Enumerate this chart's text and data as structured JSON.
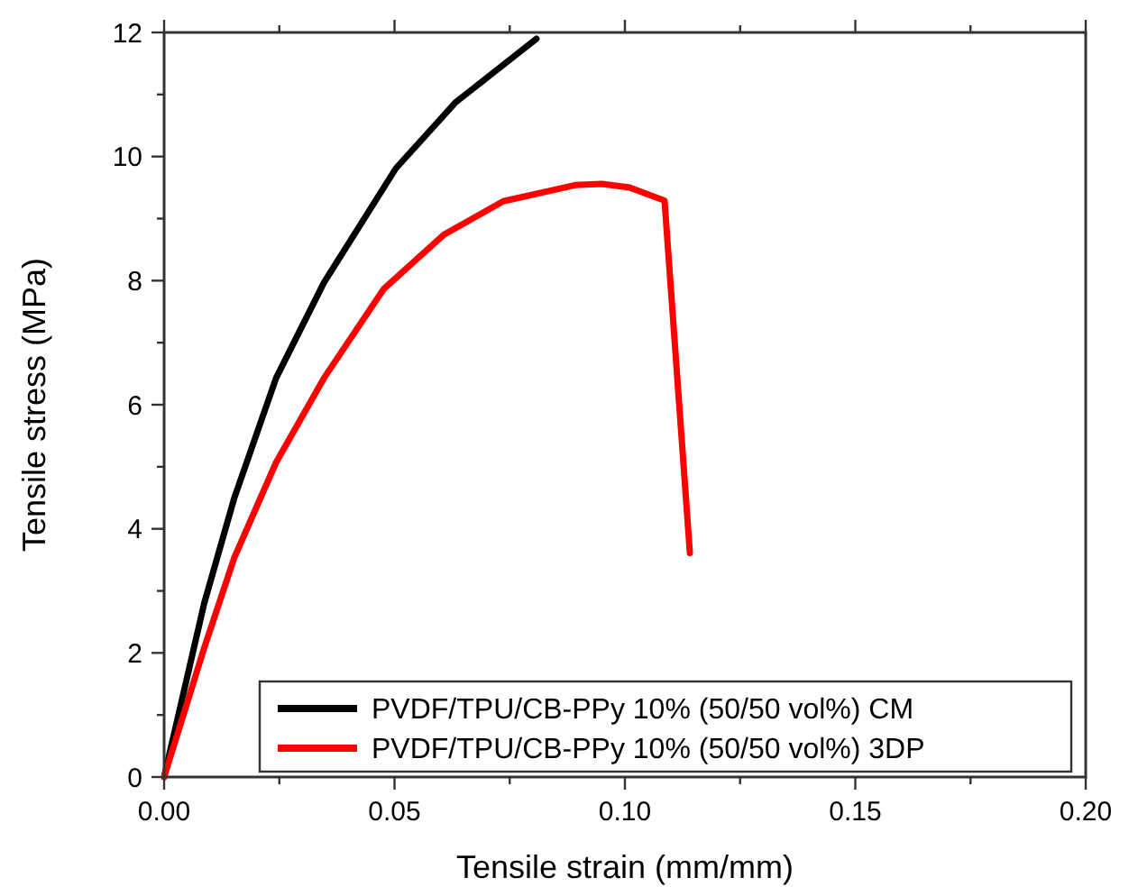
{
  "chart_data": {
    "type": "line",
    "xlabel": "Tensile strain (mm/mm)",
    "ylabel": "Tensile stress (MPa)",
    "xlim": [
      0,
      0.2
    ],
    "ylim": [
      0,
      12
    ],
    "xticks": [
      {
        "value": 0,
        "label": "0.00"
      },
      {
        "value": 0.025,
        "label": null
      },
      {
        "value": 0.05,
        "label": "0.05"
      },
      {
        "value": 0.075,
        "label": null
      },
      {
        "value": 0.1,
        "label": "0.10"
      },
      {
        "value": 0.125,
        "label": null
      },
      {
        "value": 0.15,
        "label": "0.15"
      },
      {
        "value": 0.175,
        "label": null
      },
      {
        "value": 0.2,
        "label": "0.20"
      }
    ],
    "yticks": [
      0,
      {
        "value": 1,
        "label": null
      },
      2,
      {
        "value": 3,
        "label": null
      },
      4,
      {
        "value": 5,
        "label": null
      },
      6,
      {
        "value": 7,
        "label": null
      },
      8,
      {
        "value": 9,
        "label": null
      },
      10,
      {
        "value": 11,
        "label": null
      },
      12
    ],
    "grid": false,
    "legend": "bottom right",
    "line_style": "solid",
    "series": [
      {
        "name": "PVDF/TPU/CB-PPy 10% (50/50 vol%) CM",
        "color": "#000000",
        "x": [
          0,
          0.0087,
          0.0152,
          0.0243,
          0.0347,
          0.0503,
          0.0632,
          0.0808
        ],
        "values": [
          0,
          2.8,
          4.49,
          6.43,
          7.97,
          9.81,
          10.87,
          11.9
        ]
      },
      {
        "name": "PVDF/TPU/CB-PPy 10% (50/50 vol%) 3DP",
        "color": "#ff0000",
        "x": [
          0,
          0.0087,
          0.0152,
          0.0243,
          0.0347,
          0.0477,
          0.0607,
          0.0736,
          0.0892,
          0.095,
          0.101,
          0.1086,
          0.1141
        ],
        "values": [
          0,
          2.08,
          3.53,
          5.07,
          6.43,
          7.87,
          8.74,
          9.28,
          9.54,
          9.56,
          9.5,
          9.29,
          3.61
        ]
      }
    ]
  }
}
